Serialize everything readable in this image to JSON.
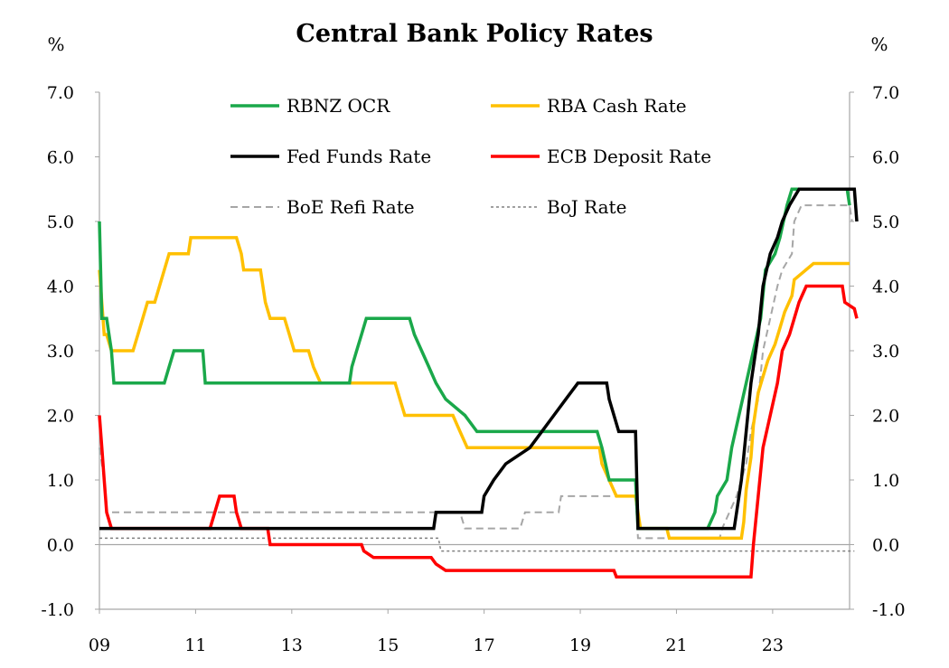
{
  "chart_data": {
    "type": "line",
    "title": "Central Bank Policy Rates",
    "unit_left": "%",
    "unit_right": "%",
    "xlim": [
      2009.0,
      2024.6
    ],
    "ylim": [
      -1.0,
      7.0
    ],
    "yticks": [
      -1.0,
      0.0,
      1.0,
      2.0,
      3.0,
      4.0,
      5.0,
      6.0,
      7.0
    ],
    "ytick_labels": [
      "-1.0",
      "0.0",
      "1.0",
      "2.0",
      "3.0",
      "4.0",
      "5.0",
      "6.0",
      "7.0"
    ],
    "xticks": [
      2009,
      2011,
      2013,
      2015,
      2017,
      2019,
      2021,
      2023
    ],
    "xtick_labels": [
      "09",
      "11",
      "13",
      "15",
      "17",
      "19",
      "21",
      "23"
    ],
    "legend_position": "top",
    "series": [
      {
        "name": "RBNZ OCR",
        "color": "#1aa84a",
        "style": "solid",
        "width": 3.5,
        "points": [
          [
            2009.0,
            5.0
          ],
          [
            2009.05,
            3.5
          ],
          [
            2009.15,
            3.5
          ],
          [
            2009.25,
            3.0
          ],
          [
            2009.3,
            2.5
          ],
          [
            2010.35,
            2.5
          ],
          [
            2010.45,
            2.75
          ],
          [
            2010.55,
            3.0
          ],
          [
            2011.15,
            3.0
          ],
          [
            2011.2,
            2.5
          ],
          [
            2014.2,
            2.5
          ],
          [
            2014.25,
            2.75
          ],
          [
            2014.35,
            3.0
          ],
          [
            2014.45,
            3.25
          ],
          [
            2014.55,
            3.5
          ],
          [
            2015.45,
            3.5
          ],
          [
            2015.55,
            3.25
          ],
          [
            2015.7,
            3.0
          ],
          [
            2015.85,
            2.75
          ],
          [
            2016.0,
            2.5
          ],
          [
            2016.2,
            2.25
          ],
          [
            2016.6,
            2.0
          ],
          [
            2016.85,
            1.75
          ],
          [
            2019.35,
            1.75
          ],
          [
            2019.45,
            1.5
          ],
          [
            2019.6,
            1.0
          ],
          [
            2020.15,
            1.0
          ],
          [
            2020.2,
            0.25
          ],
          [
            2021.65,
            0.25
          ],
          [
            2021.8,
            0.5
          ],
          [
            2021.85,
            0.75
          ],
          [
            2022.05,
            1.0
          ],
          [
            2022.15,
            1.5
          ],
          [
            2022.3,
            2.0
          ],
          [
            2022.45,
            2.5
          ],
          [
            2022.6,
            3.0
          ],
          [
            2022.75,
            3.5
          ],
          [
            2022.85,
            4.25
          ],
          [
            2023.05,
            4.5
          ],
          [
            2023.15,
            4.75
          ],
          [
            2023.3,
            5.25
          ],
          [
            2023.4,
            5.5
          ],
          [
            2024.55,
            5.5
          ],
          [
            2024.6,
            5.25
          ]
        ]
      },
      {
        "name": "RBA Cash Rate",
        "color": "#ffc000",
        "style": "solid",
        "width": 3.5,
        "points": [
          [
            2009.0,
            4.25
          ],
          [
            2009.1,
            3.25
          ],
          [
            2009.15,
            3.25
          ],
          [
            2009.25,
            3.0
          ],
          [
            2009.7,
            3.0
          ],
          [
            2009.8,
            3.25
          ],
          [
            2009.9,
            3.5
          ],
          [
            2010.0,
            3.75
          ],
          [
            2010.15,
            3.75
          ],
          [
            2010.25,
            4.0
          ],
          [
            2010.35,
            4.25
          ],
          [
            2010.45,
            4.5
          ],
          [
            2010.85,
            4.5
          ],
          [
            2010.9,
            4.75
          ],
          [
            2011.85,
            4.75
          ],
          [
            2011.95,
            4.5
          ],
          [
            2012.0,
            4.25
          ],
          [
            2012.35,
            4.25
          ],
          [
            2012.45,
            3.75
          ],
          [
            2012.55,
            3.5
          ],
          [
            2012.85,
            3.5
          ],
          [
            2012.95,
            3.25
          ],
          [
            2013.05,
            3.0
          ],
          [
            2013.35,
            3.0
          ],
          [
            2013.45,
            2.75
          ],
          [
            2013.6,
            2.5
          ],
          [
            2015.15,
            2.5
          ],
          [
            2015.25,
            2.25
          ],
          [
            2015.35,
            2.0
          ],
          [
            2016.35,
            2.0
          ],
          [
            2016.5,
            1.75
          ],
          [
            2016.65,
            1.5
          ],
          [
            2019.4,
            1.5
          ],
          [
            2019.45,
            1.25
          ],
          [
            2019.6,
            1.0
          ],
          [
            2019.75,
            0.75
          ],
          [
            2020.15,
            0.75
          ],
          [
            2020.2,
            0.5
          ],
          [
            2020.25,
            0.25
          ],
          [
            2020.8,
            0.25
          ],
          [
            2020.85,
            0.1
          ],
          [
            2022.35,
            0.1
          ],
          [
            2022.4,
            0.35
          ],
          [
            2022.45,
            0.85
          ],
          [
            2022.55,
            1.35
          ],
          [
            2022.6,
            1.85
          ],
          [
            2022.7,
            2.35
          ],
          [
            2022.8,
            2.6
          ],
          [
            2022.9,
            2.85
          ],
          [
            2023.05,
            3.1
          ],
          [
            2023.15,
            3.35
          ],
          [
            2023.25,
            3.6
          ],
          [
            2023.4,
            3.85
          ],
          [
            2023.45,
            4.1
          ],
          [
            2023.85,
            4.35
          ],
          [
            2024.6,
            4.35
          ]
        ]
      },
      {
        "name": "Fed Funds Rate",
        "color": "#000000",
        "style": "solid",
        "width": 3.5,
        "points": [
          [
            2009.0,
            0.25
          ],
          [
            2015.95,
            0.25
          ],
          [
            2016.0,
            0.5
          ],
          [
            2016.95,
            0.5
          ],
          [
            2017.0,
            0.75
          ],
          [
            2017.2,
            1.0
          ],
          [
            2017.45,
            1.25
          ],
          [
            2017.95,
            1.5
          ],
          [
            2018.2,
            1.75
          ],
          [
            2018.45,
            2.0
          ],
          [
            2018.7,
            2.25
          ],
          [
            2018.95,
            2.5
          ],
          [
            2019.55,
            2.5
          ],
          [
            2019.6,
            2.25
          ],
          [
            2019.7,
            2.0
          ],
          [
            2019.8,
            1.75
          ],
          [
            2020.15,
            1.75
          ],
          [
            2020.2,
            0.25
          ],
          [
            2022.2,
            0.25
          ],
          [
            2022.25,
            0.5
          ],
          [
            2022.35,
            1.0
          ],
          [
            2022.45,
            1.75
          ],
          [
            2022.55,
            2.5
          ],
          [
            2022.7,
            3.25
          ],
          [
            2022.8,
            4.0
          ],
          [
            2022.95,
            4.5
          ],
          [
            2023.1,
            4.75
          ],
          [
            2023.2,
            5.0
          ],
          [
            2023.35,
            5.25
          ],
          [
            2023.55,
            5.5
          ],
          [
            2024.7,
            5.5
          ],
          [
            2024.75,
            5.0
          ]
        ]
      },
      {
        "name": "ECB Deposit Rate",
        "color": "#ff0000",
        "style": "solid",
        "width": 3.5,
        "points": [
          [
            2009.0,
            2.0
          ],
          [
            2009.05,
            1.5
          ],
          [
            2009.1,
            1.0
          ],
          [
            2009.15,
            0.5
          ],
          [
            2009.25,
            0.25
          ],
          [
            2011.3,
            0.25
          ],
          [
            2011.4,
            0.5
          ],
          [
            2011.5,
            0.75
          ],
          [
            2011.8,
            0.75
          ],
          [
            2011.85,
            0.5
          ],
          [
            2011.95,
            0.25
          ],
          [
            2012.5,
            0.25
          ],
          [
            2012.55,
            0.0
          ],
          [
            2014.45,
            0.0
          ],
          [
            2014.5,
            -0.1
          ],
          [
            2014.7,
            -0.2
          ],
          [
            2015.9,
            -0.2
          ],
          [
            2016.0,
            -0.3
          ],
          [
            2016.2,
            -0.4
          ],
          [
            2019.7,
            -0.4
          ],
          [
            2019.75,
            -0.5
          ],
          [
            2022.55,
            -0.5
          ],
          [
            2022.6,
            0.0
          ],
          [
            2022.7,
            0.75
          ],
          [
            2022.8,
            1.5
          ],
          [
            2022.95,
            2.0
          ],
          [
            2023.1,
            2.5
          ],
          [
            2023.2,
            3.0
          ],
          [
            2023.35,
            3.25
          ],
          [
            2023.45,
            3.5
          ],
          [
            2023.55,
            3.75
          ],
          [
            2023.7,
            4.0
          ],
          [
            2024.45,
            4.0
          ],
          [
            2024.5,
            3.75
          ],
          [
            2024.7,
            3.65
          ],
          [
            2024.75,
            3.5
          ]
        ]
      },
      {
        "name": "BoE Refi Rate",
        "color": "#a6a6a6",
        "style": "dashed",
        "width": 2,
        "points": [
          [
            2009.0,
            1.5
          ],
          [
            2009.1,
            1.0
          ],
          [
            2009.15,
            0.5
          ],
          [
            2016.5,
            0.5
          ],
          [
            2016.6,
            0.25
          ],
          [
            2017.75,
            0.25
          ],
          [
            2017.85,
            0.5
          ],
          [
            2018.55,
            0.5
          ],
          [
            2018.6,
            0.75
          ],
          [
            2020.15,
            0.75
          ],
          [
            2020.2,
            0.1
          ],
          [
            2021.9,
            0.1
          ],
          [
            2021.95,
            0.25
          ],
          [
            2022.1,
            0.5
          ],
          [
            2022.25,
            0.75
          ],
          [
            2022.35,
            1.0
          ],
          [
            2022.45,
            1.25
          ],
          [
            2022.55,
            1.75
          ],
          [
            2022.7,
            2.25
          ],
          [
            2022.8,
            3.0
          ],
          [
            2022.95,
            3.5
          ],
          [
            2023.1,
            4.0
          ],
          [
            2023.2,
            4.25
          ],
          [
            2023.4,
            4.5
          ],
          [
            2023.45,
            5.0
          ],
          [
            2023.6,
            5.25
          ],
          [
            2024.6,
            5.25
          ],
          [
            2024.65,
            5.0
          ]
        ]
      },
      {
        "name": "BoJ Rate",
        "color": "#808080",
        "style": "dotted",
        "width": 1.5,
        "points": [
          [
            2009.0,
            0.1
          ],
          [
            2016.05,
            0.1
          ],
          [
            2016.1,
            -0.1
          ],
          [
            2024.7,
            -0.1
          ]
        ]
      }
    ]
  }
}
